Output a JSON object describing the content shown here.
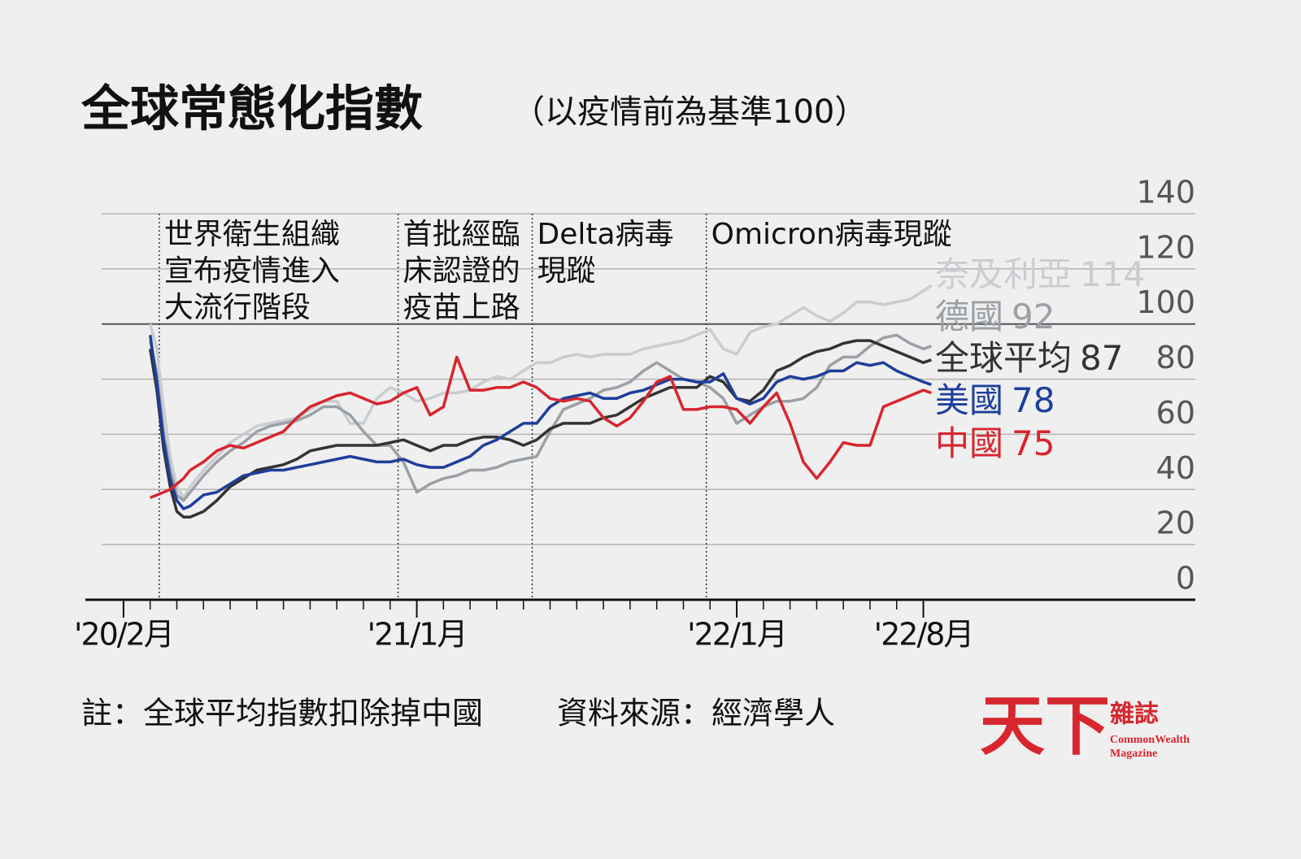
{
  "chart_data": {
    "type": "line",
    "title": "全球常態化指數",
    "subtitle": "（以疫情前為基準100）",
    "x": [
      1,
      1.25,
      1.5,
      1.75,
      2,
      2.25,
      2.5,
      3,
      3.5,
      4,
      4.5,
      5,
      5.5,
      6,
      6.5,
      7,
      7.5,
      8,
      8.5,
      9,
      9.5,
      10,
      10.5,
      11,
      11.5,
      12,
      12.5,
      13,
      13.5,
      14,
      14.5,
      15,
      15.5,
      16,
      16.5,
      17,
      17.5,
      18,
      18.5,
      19,
      19.5,
      20,
      20.5,
      21,
      21.5,
      22,
      22.5,
      23,
      23.5,
      24,
      24.5,
      25,
      25.5,
      26,
      26.5,
      27,
      27.5,
      28,
      28.5,
      29,
      29.5,
      30,
      30.3
    ],
    "series": [
      {
        "name": "奈及利亞",
        "color": "#c9cdd1",
        "values": [
          100,
          91,
          70,
          52,
          41,
          37,
          41,
          47,
          52,
          57,
          60,
          63,
          64,
          65,
          66,
          69,
          72,
          72,
          64,
          64,
          73,
          77,
          75,
          72,
          73,
          75,
          75,
          76,
          79,
          81,
          80,
          83,
          86,
          86,
          88,
          89,
          88,
          89,
          89,
          89,
          91,
          92,
          93,
          94,
          96,
          98,
          91,
          89,
          97,
          99,
          100,
          103,
          106,
          103,
          101,
          104,
          108,
          108,
          107,
          108,
          109,
          112,
          114
        ]
      },
      {
        "name": "德國",
        "color": "#9aa0a6",
        "values": [
          94,
          82,
          61,
          47,
          38,
          36,
          39,
          45,
          50,
          54,
          57,
          61,
          63,
          64,
          65,
          67,
          70,
          70,
          67,
          61,
          56,
          56,
          50,
          39,
          42,
          44,
          45,
          47,
          47,
          48,
          50,
          51,
          52,
          61,
          69,
          71,
          73,
          76,
          77,
          79,
          83,
          86,
          83,
          80,
          79,
          77,
          73,
          64,
          67,
          70,
          72,
          72,
          73,
          77,
          85,
          88,
          88,
          92,
          95,
          96,
          93,
          91,
          92
        ]
      },
      {
        "name": "全球平均",
        "color": "#333333",
        "values": [
          91,
          76,
          55,
          41,
          32,
          30,
          30,
          32,
          36,
          41,
          44,
          47,
          48,
          49,
          51,
          54,
          55,
          56,
          56,
          56,
          56,
          57,
          58,
          56,
          54,
          56,
          56,
          58,
          59,
          59,
          58,
          56,
          58,
          62,
          64,
          64,
          64,
          66,
          67,
          70,
          73,
          75,
          77,
          77,
          77,
          81,
          79,
          73,
          72,
          76,
          83,
          85,
          88,
          90,
          91,
          93,
          94,
          94,
          92,
          90,
          88,
          86,
          87
        ]
      },
      {
        "name": "美國",
        "color": "#1d3f9b",
        "values": [
          96,
          79,
          58,
          44,
          36,
          33,
          34,
          38,
          39,
          42,
          45,
          46,
          47,
          47,
          48,
          49,
          50,
          51,
          52,
          51,
          50,
          50,
          51,
          49,
          48,
          48,
          50,
          52,
          56,
          58,
          61,
          64,
          64,
          70,
          73,
          74,
          75,
          73,
          73,
          75,
          76,
          78,
          80,
          80,
          79,
          79,
          82,
          73,
          71,
          73,
          79,
          81,
          80,
          81,
          83,
          83,
          86,
          85,
          86,
          83,
          81,
          79,
          78
        ]
      },
      {
        "name": "中國",
        "color": "#d7262e",
        "values": [
          37,
          38,
          39,
          40,
          42,
          44,
          47,
          50,
          54,
          56,
          55,
          57,
          59,
          61,
          66,
          70,
          72,
          74,
          75,
          73,
          71,
          72,
          75,
          77,
          67,
          70,
          88,
          76,
          76,
          77,
          77,
          79,
          77,
          73,
          72,
          73,
          72,
          66,
          63,
          66,
          72,
          79,
          81,
          69,
          69,
          70,
          70,
          69,
          64,
          70,
          75,
          64,
          50,
          44,
          50,
          57,
          56,
          56,
          70,
          72,
          74,
          76,
          75
        ]
      }
    ],
    "xlim": [
      -1.43,
      40.2
    ],
    "xticks": [
      {
        "value": 0,
        "label": "'20/2月"
      },
      {
        "value": 11,
        "label": "'21/1月"
      },
      {
        "value": 23,
        "label": "'22/1月"
      },
      {
        "value": 30,
        "label": "'22/8月"
      }
    ],
    "xminorticks": [
      1,
      2,
      3,
      4,
      5,
      6,
      7,
      8,
      9,
      10,
      12,
      13,
      14,
      15,
      16,
      17,
      18,
      19,
      20,
      21,
      22,
      24,
      25,
      26,
      27,
      28,
      29
    ],
    "ylim": [
      0,
      140
    ],
    "yticks": [
      0,
      20,
      40,
      60,
      80,
      100,
      120,
      140
    ],
    "reference_line": 100,
    "grid": true,
    "annotations": [
      {
        "x": 1.34,
        "text": [
          "世界衛生組織",
          "宣布疫情進入",
          "大流行階段"
        ]
      },
      {
        "x": 10.3,
        "text": [
          "首批經臨",
          "床認證的",
          "疫苗上路"
        ]
      },
      {
        "x": 15.33,
        "text": [
          "Delta病毒",
          "現蹤"
        ]
      },
      {
        "x": 21.86,
        "text": [
          "Omicron病毒現蹤"
        ]
      }
    ],
    "note": "註：全球平均指數扣除掉中國",
    "source": "資料來源：經濟學人",
    "logo": {
      "mark": "天下",
      "name": "雜誌",
      "english_1": "CommonWealth",
      "english_2": "Magazine"
    }
  }
}
